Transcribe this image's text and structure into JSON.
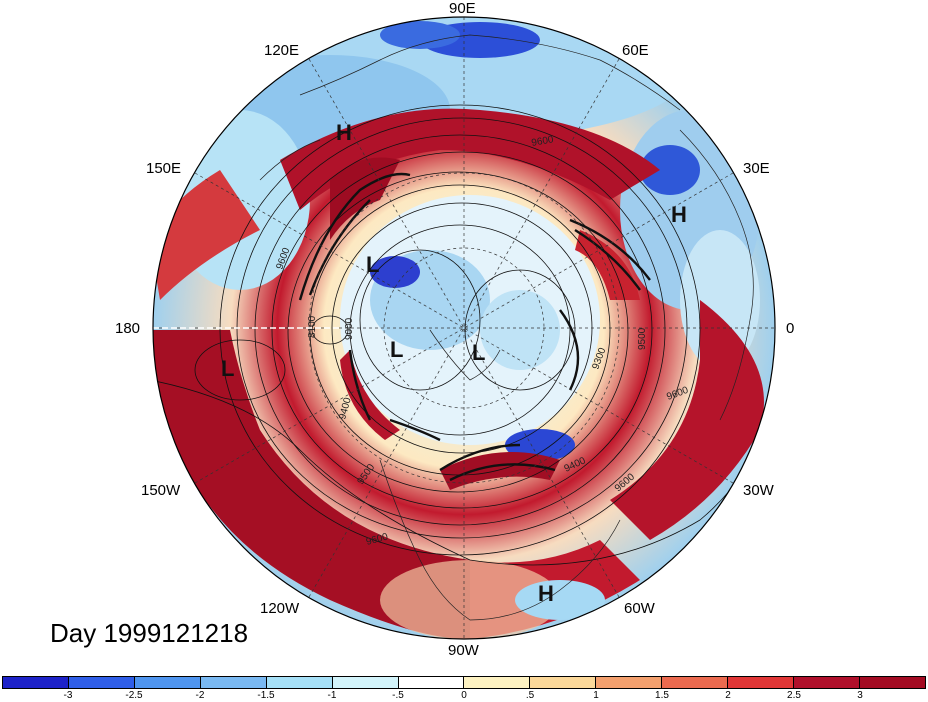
{
  "title": "Day 1999121218",
  "longitude_labels": {
    "lon_90e": "90E",
    "lon_60e": "60E",
    "lon_30e": "30E",
    "lon_0": "0",
    "lon_30w": "30W",
    "lon_60w": "60W",
    "lon_90w": "90W",
    "lon_120w": "120W",
    "lon_150w": "150W",
    "lon_180": "180",
    "lon_150e": "150E",
    "lon_120e": "120E"
  },
  "pressure_centers": [
    {
      "id": "h-siberia",
      "label": "H"
    },
    {
      "id": "h-europe",
      "label": "H"
    },
    {
      "id": "l-pacific-north",
      "label": "L"
    },
    {
      "id": "l-arctic-1",
      "label": "L"
    },
    {
      "id": "l-arctic-2",
      "label": "L"
    },
    {
      "id": "l-pacific-east",
      "label": "L"
    },
    {
      "id": "h-south-america",
      "label": "H"
    }
  ],
  "contour_labels": [
    "9600",
    "9600",
    "9000",
    "8100",
    "9300",
    "9500",
    "9400",
    "9400",
    "9600",
    "9500",
    "9600",
    "9600"
  ],
  "colorbar": {
    "labels": [
      "-3",
      "-2.5",
      "-2",
      "-1.5",
      "-1",
      "-.5",
      "0",
      ".5",
      "1",
      "1.5",
      "2",
      "2.5",
      "3"
    ],
    "colors": [
      "#1d22c9",
      "#2f5ee8",
      "#4f95ef",
      "#7ab9f2",
      "#a6e0f7",
      "#d3f4fb",
      "#ffffff",
      "#fdf2c2",
      "#fbd89a",
      "#f3a06e",
      "#eb6a4f",
      "#e13636",
      "#b0102b",
      "#a30b22"
    ]
  }
}
